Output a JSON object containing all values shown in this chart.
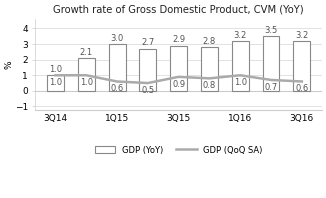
{
  "title": "Growth rate of Gross Domestic Product, CVM (YoY)",
  "xlabel_ticks": [
    "3Q14",
    "",
    "1Q15",
    "",
    "3Q15",
    "",
    "1Q16",
    "",
    "3Q16"
  ],
  "bar_values": [
    1.0,
    2.1,
    3.0,
    2.7,
    2.9,
    2.8,
    3.2,
    3.5,
    3.2
  ],
  "line_values": [
    1.0,
    1.0,
    0.6,
    0.5,
    0.9,
    0.8,
    1.0,
    0.7,
    0.6
  ],
  "bar_label_offsets": [
    0.08,
    0.08,
    0.08,
    0.08,
    0.08,
    0.08,
    0.08,
    0.08,
    0.08
  ],
  "line_label_offsets": [
    -0.18,
    -0.18,
    -0.18,
    -0.18,
    -0.18,
    -0.18,
    -0.18,
    -0.18,
    -0.18
  ],
  "bar_color": "#ffffff",
  "bar_edgecolor": "#888888",
  "line_color": "#aaaaaa",
  "label_color": "#555555",
  "ylim": [
    -1.2,
    4.6
  ],
  "yticks": [
    -1.0,
    0.0,
    1.0,
    2.0,
    3.0,
    4.0
  ],
  "ylabel": "%",
  "title_fontsize": 7.2,
  "label_fontsize": 6.0,
  "tick_fontsize": 6.5,
  "legend_yoy": "GDP (YoY)",
  "legend_qoq": "GDP (QoQ SA)",
  "background_color": "#ffffff",
  "spine_color": "#cccccc",
  "bar_width": 0.55
}
